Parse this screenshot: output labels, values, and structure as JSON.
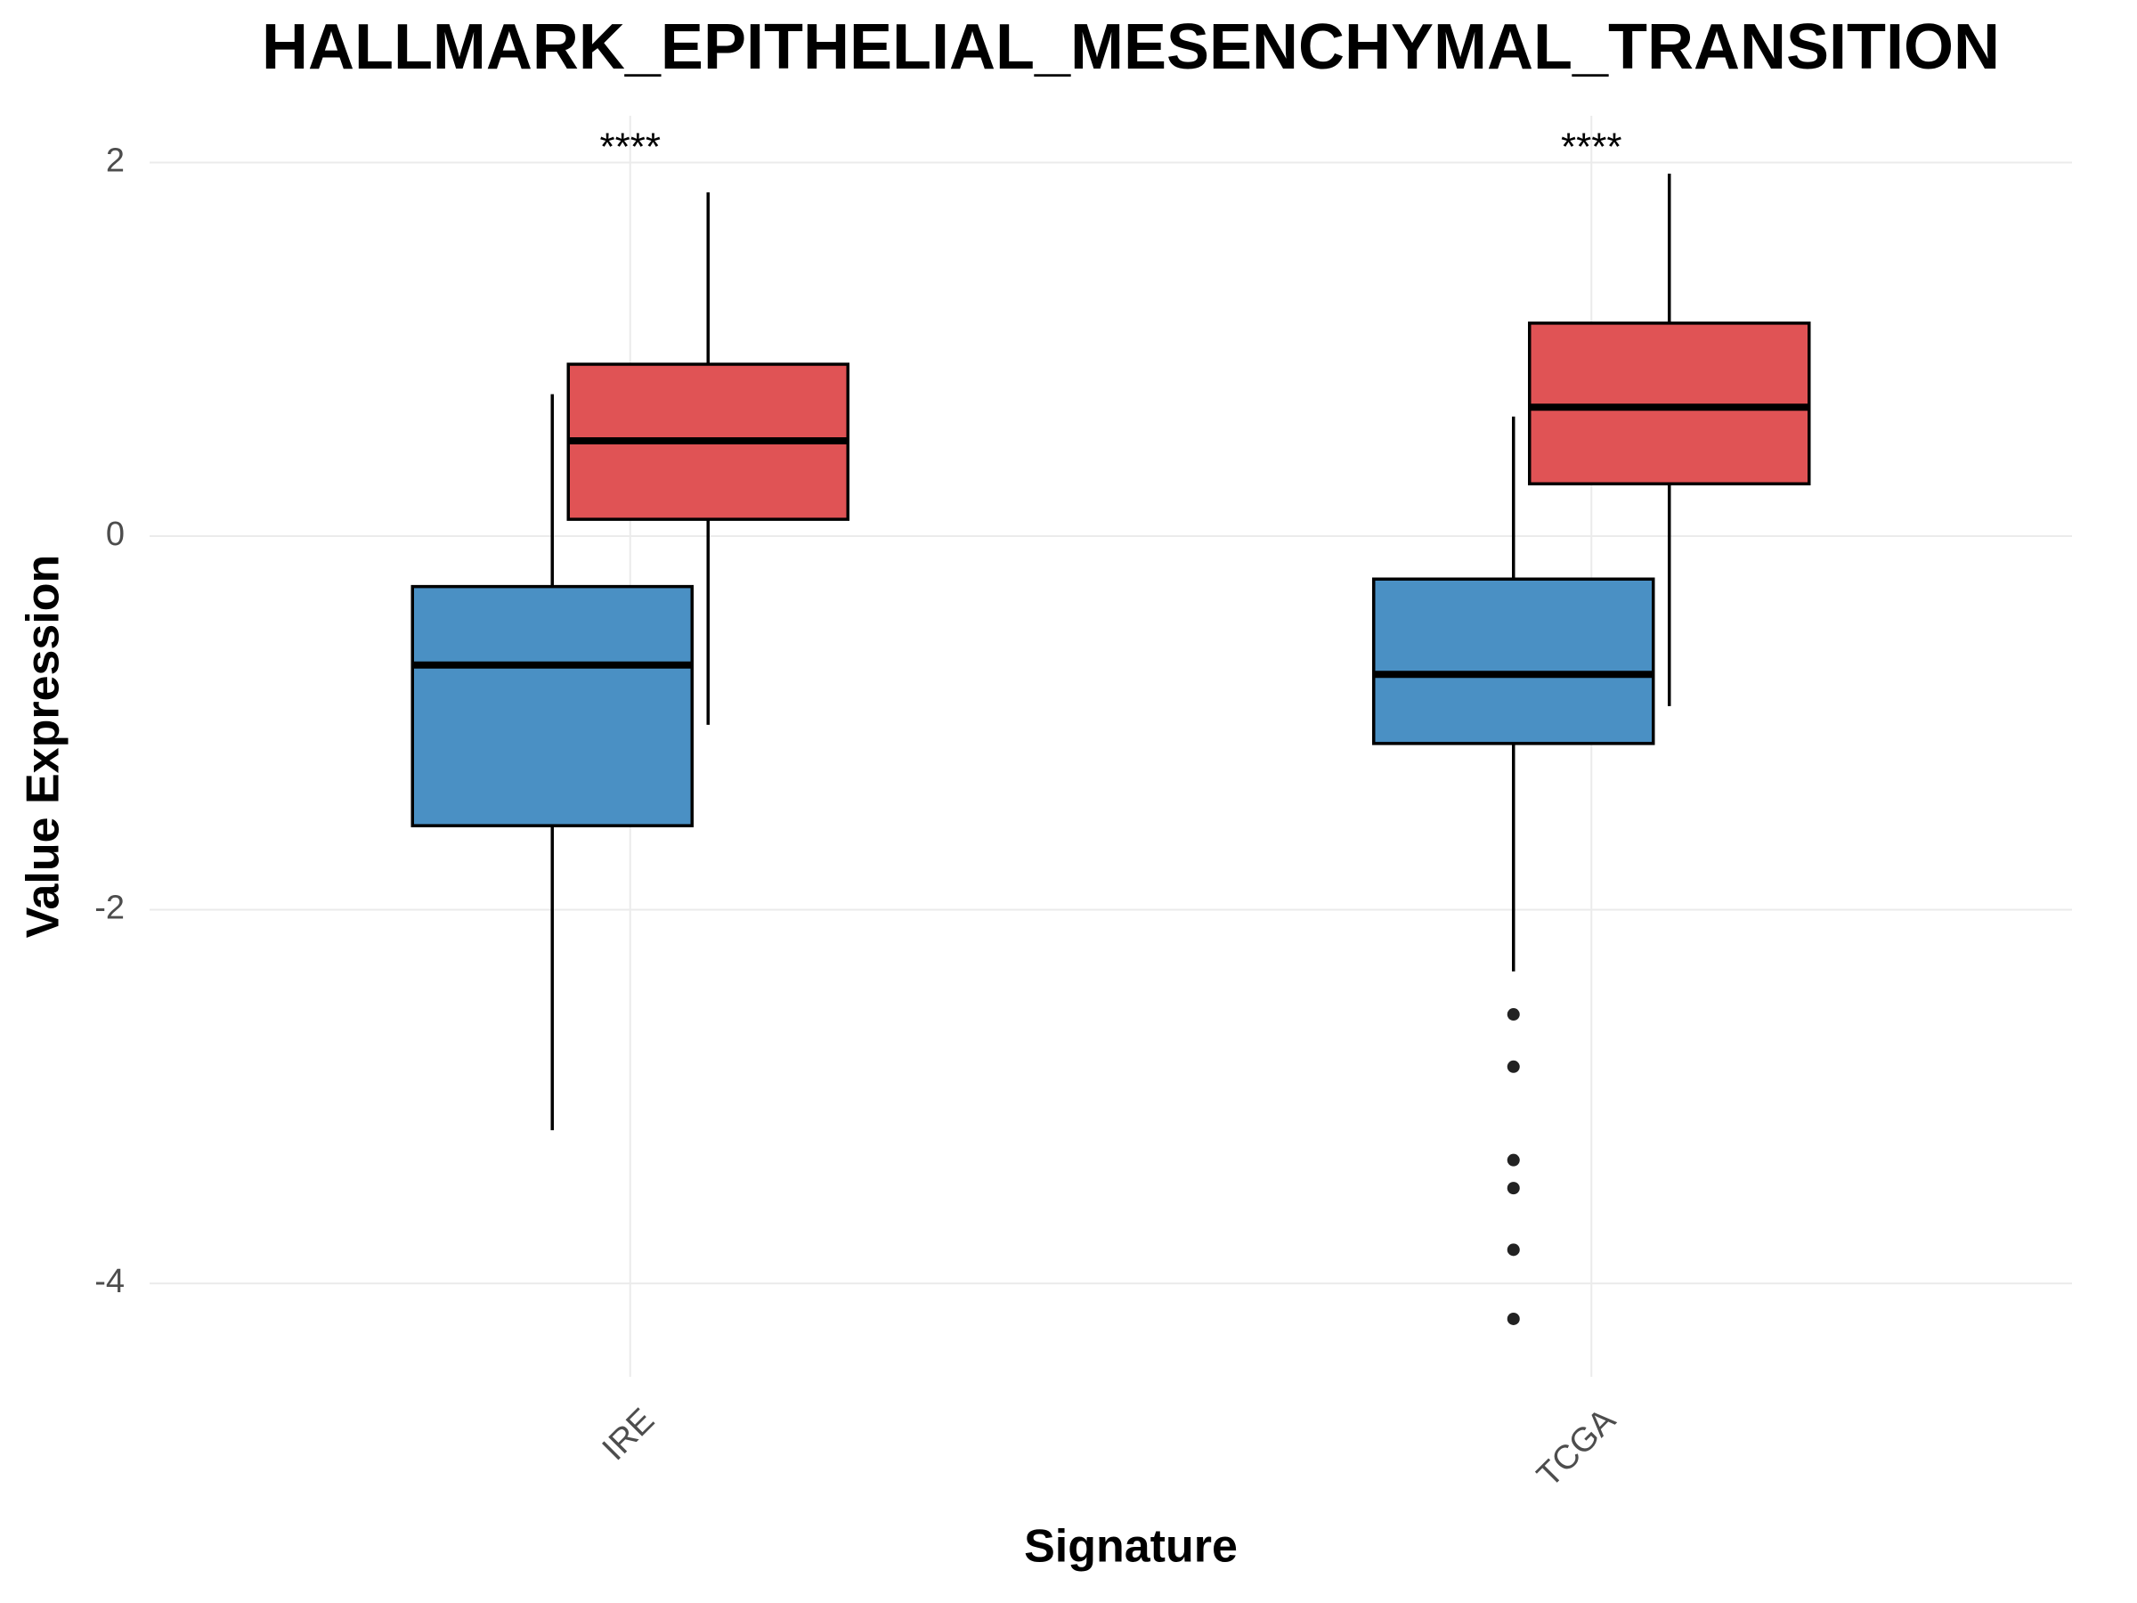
{
  "chart_data": {
    "type": "box",
    "title": "HALLMARK_EPITHELIAL_MESENCHYMAL_TRANSITION",
    "x_label": "Signature",
    "y_label": "Value Expression",
    "categories": [
      "IRE",
      "TCGA"
    ],
    "annotations": [
      "****",
      "****"
    ],
    "series": [
      {
        "color": "#4a90c4",
        "boxes": [
          {
            "whisker_low": -3.18,
            "q1": -1.55,
            "median": -0.69,
            "q3": -0.27,
            "whisker_high": 0.76,
            "outliers": []
          },
          {
            "whisker_low": -2.33,
            "q1": -1.11,
            "median": -0.74,
            "q3": -0.23,
            "whisker_high": 0.64,
            "outliers": [
              -2.56,
              -2.84,
              -3.34,
              -3.49,
              -3.82,
              -4.19
            ]
          }
        ]
      },
      {
        "color": "#e05355",
        "boxes": [
          {
            "whisker_low": -1.01,
            "q1": 0.09,
            "median": 0.51,
            "q3": 0.92,
            "whisker_high": 1.84,
            "outliers": []
          },
          {
            "whisker_low": -0.91,
            "q1": 0.28,
            "median": 0.69,
            "q3": 1.14,
            "whisker_high": 1.94,
            "outliers": []
          }
        ]
      }
    ],
    "ylim": [
      -4.5,
      2.25
    ],
    "yticks": [
      -4,
      -2,
      0,
      2
    ],
    "grid": true
  }
}
